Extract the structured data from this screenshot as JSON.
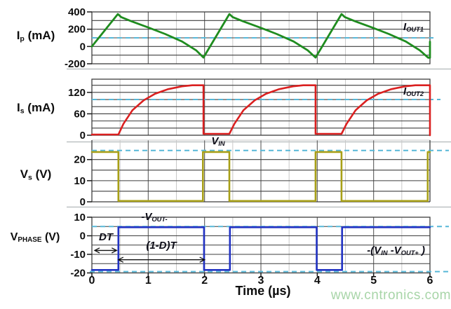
{
  "watermark": "www.cntronics.com",
  "chart_data": {
    "type": "line",
    "xlabel": "Time (µs)",
    "xlim": [
      0,
      6
    ],
    "x_major": [
      1,
      2,
      3,
      4,
      5
    ],
    "x_minor": [
      0.5,
      1.5,
      2.5,
      3.5,
      4.5,
      5.5
    ],
    "xticks": [
      {
        "t": 0,
        "label": "0"
      },
      {
        "t": 1,
        "label": "1"
      },
      {
        "t": 2,
        "label": "2"
      },
      {
        "t": 3,
        "label": "3"
      },
      {
        "t": 4,
        "label": "4"
      },
      {
        "t": 5,
        "label": "5"
      },
      {
        "t": 6,
        "label": "6"
      }
    ],
    "period_us": 2,
    "panels": [
      {
        "id": "Ip",
        "ylabel_parts": [
          "I",
          "p",
          " (mA)"
        ],
        "ylim": [
          -200,
          400
        ],
        "grid": [
          300,
          200,
          100,
          0,
          -100
        ],
        "yticks": [
          {
            "v": 400,
            "label": "400"
          },
          {
            "v": 200,
            "label": "200"
          },
          {
            "v": 0,
            "label": "0"
          },
          {
            "v": -200,
            "label": "-200"
          }
        ],
        "ref_lines": [
          {
            "v": 100,
            "overhang": 10,
            "label_parts": [
              "I",
              "OUT1"
            ]
          }
        ],
        "color": "#1f8c1f",
        "stroke": 2.8,
        "points": [
          [
            0,
            0
          ],
          [
            0.46,
            375
          ],
          [
            0.52,
            340
          ],
          [
            0.7,
            292
          ],
          [
            1.0,
            220
          ],
          [
            1.3,
            145
          ],
          [
            1.6,
            58
          ],
          [
            1.85,
            -44
          ],
          [
            1.98,
            -128
          ],
          [
            2.44,
            375
          ],
          [
            2.5,
            340
          ],
          [
            2.68,
            292
          ],
          [
            2.98,
            220
          ],
          [
            3.28,
            145
          ],
          [
            3.58,
            58
          ],
          [
            3.83,
            -44
          ],
          [
            3.97,
            -128
          ],
          [
            4.43,
            375
          ],
          [
            4.49,
            340
          ],
          [
            4.67,
            292
          ],
          [
            4.97,
            220
          ],
          [
            5.27,
            145
          ],
          [
            5.57,
            58
          ],
          [
            5.82,
            -44
          ],
          [
            5.97,
            -130
          ],
          [
            6,
            -130
          ],
          [
            6,
            55
          ]
        ]
      },
      {
        "id": "Is",
        "ylabel_parts": [
          "I",
          "s",
          " (mA)"
        ],
        "ylim": [
          0,
          157
        ],
        "grid": [
          140,
          120,
          100,
          80,
          60,
          40,
          20
        ],
        "yticks": [
          {
            "v": 120,
            "label": "120"
          },
          {
            "v": 60,
            "label": "60"
          },
          {
            "v": 0,
            "label": "0"
          }
        ],
        "ref_lines": [
          {
            "v": 100,
            "overhang": 15,
            "label_parts": [
              "I",
              "OUT2"
            ]
          }
        ],
        "color": "#da2020",
        "stroke": 2.6,
        "points": [
          [
            0,
            2
          ],
          [
            0.47,
            2
          ],
          [
            0.56,
            32
          ],
          [
            0.72,
            70
          ],
          [
            0.92,
            98
          ],
          [
            1.12,
            116
          ],
          [
            1.35,
            129
          ],
          [
            1.6,
            137
          ],
          [
            1.78,
            140
          ],
          [
            1.98,
            140
          ],
          [
            1.98,
            4
          ],
          [
            2.44,
            4
          ],
          [
            2.53,
            32
          ],
          [
            2.69,
            70
          ],
          [
            2.89,
            98
          ],
          [
            3.09,
            116
          ],
          [
            3.32,
            129
          ],
          [
            3.57,
            137
          ],
          [
            3.75,
            140
          ],
          [
            3.97,
            140
          ],
          [
            3.97,
            4
          ],
          [
            4.43,
            4
          ],
          [
            4.52,
            32
          ],
          [
            4.68,
            70
          ],
          [
            4.88,
            98
          ],
          [
            5.08,
            116
          ],
          [
            5.31,
            129
          ],
          [
            5.56,
            137
          ],
          [
            5.74,
            140
          ],
          [
            6,
            140
          ],
          [
            6,
            0
          ]
        ]
      },
      {
        "id": "Vs",
        "ylabel_parts": [
          "V",
          "s",
          " (V)"
        ],
        "ylim": [
          0,
          29.2
        ],
        "grid": [
          20,
          15,
          10,
          5
        ],
        "yticks": [
          {
            "v": 20,
            "label": "20"
          },
          {
            "v": 10,
            "label": "10"
          },
          {
            "v": 0,
            "label": "0"
          }
        ],
        "ref_lines": [
          {
            "v": 24.3,
            "overhang": 27,
            "label_parts": [
              "V",
              "IN"
            ]
          }
        ],
        "color": "#a8a018",
        "stroke": 2.6,
        "points": [
          [
            0,
            23.6
          ],
          [
            0.47,
            23.6
          ],
          [
            0.47,
            0.4
          ],
          [
            1.97,
            0.4
          ],
          [
            1.97,
            23.6
          ],
          [
            2.44,
            23.6
          ],
          [
            2.44,
            0.4
          ],
          [
            3.97,
            0.4
          ],
          [
            3.97,
            23.6
          ],
          [
            4.43,
            23.6
          ],
          [
            4.43,
            0.4
          ],
          [
            5.96,
            0.4
          ],
          [
            5.96,
            23.6
          ],
          [
            6,
            23.6
          ]
        ]
      },
      {
        "id": "Vphase",
        "ylabel_parts": [
          "V",
          "PHASE",
          " (V)"
        ],
        "ylim": [
          -20,
          10
        ],
        "grid": [
          5,
          0,
          -5,
          -10,
          -15
        ],
        "yticks": [
          {
            "v": 10,
            "label": "10"
          },
          {
            "v": 0,
            "label": "0"
          },
          {
            "v": -10,
            "label": "-10"
          },
          {
            "v": -20,
            "label": "-20"
          }
        ],
        "ref_lines": [
          {
            "v": 5,
            "overhang": 27,
            "label_parts": [
              "-V",
              "OUT-"
            ]
          },
          {
            "v": -19.3,
            "overhang": 27,
            "left": 3,
            "label_parts": [
              "-(",
              "V",
              "IN",
              " -",
              "V",
              "OUT+",
              " )"
            ]
          }
        ],
        "color": "#2334c4",
        "stroke": 2.6,
        "arrows": [
          {
            "t1": 0.05,
            "t2": 0.44,
            "v": -7.9,
            "label": "DT"
          },
          {
            "t1": 0.47,
            "t2": 2.0,
            "v": -12.9,
            "label": "(1-D)T"
          }
        ],
        "points": [
          [
            0,
            -18.4
          ],
          [
            0.47,
            -18.4
          ],
          [
            0.47,
            4.6
          ],
          [
            1.99,
            4.6
          ],
          [
            1.99,
            -18.4
          ],
          [
            2.45,
            -18.4
          ],
          [
            2.45,
            4.6
          ],
          [
            3.99,
            4.6
          ],
          [
            3.99,
            -18.4
          ],
          [
            4.44,
            -18.4
          ],
          [
            4.44,
            4.6
          ],
          [
            6,
            4.6
          ]
        ]
      }
    ]
  }
}
